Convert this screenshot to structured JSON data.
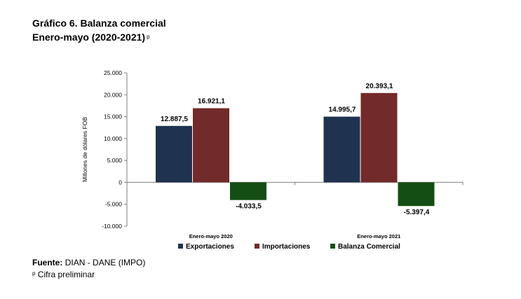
{
  "header": {
    "title_line1": "Gráfico 6. Balanza comercial",
    "title_line2": "Enero-mayo  (2020-2021)",
    "title_mark": "p"
  },
  "chart_data": {
    "type": "bar",
    "categories": [
      "Enero-mayo 2020",
      "Enero-mayo 2021"
    ],
    "series": [
      {
        "name": "Exportaciones",
        "values": [
          12887.5,
          14995.7
        ],
        "labels": [
          "12.887,5",
          "14.995,7"
        ],
        "color": "#1f3350"
      },
      {
        "name": "Importaciones",
        "values": [
          16921.1,
          20393.1
        ],
        "labels": [
          "16.921,1",
          "20.393,1"
        ],
        "color": "#722a2a"
      },
      {
        "name": "Balanza Comercial",
        "values": [
          -4033.5,
          -5397.4
        ],
        "labels": [
          "-4.033,5",
          "-5.397,4"
        ],
        "color": "#144e14"
      }
    ],
    "ylabel": "Millones de dólares FOB",
    "ylim": [
      -10000,
      25000
    ],
    "yticks": [
      25000,
      20000,
      15000,
      10000,
      5000,
      0,
      -5000,
      -10000
    ],
    "ytick_labels": [
      "25.000",
      "20.000",
      "15.000",
      "10.000",
      "5.000",
      "0",
      "-5.000",
      "-10.000"
    ],
    "legend_position": "bottom",
    "grid": false
  },
  "footer": {
    "source_label": "Fuente:",
    "source_text": "DIAN - DANE (IMPO)",
    "note_mark": "p",
    "note_text": "Cifra preliminar"
  }
}
